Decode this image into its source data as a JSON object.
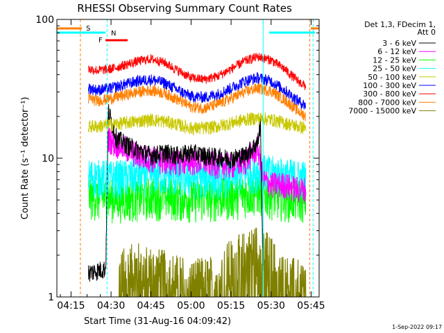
{
  "chart_data": {
    "type": "line",
    "title": "RHESSI Observing Summary Count Rates",
    "xlabel": "Start Time (31-Aug-16 04:09:42)",
    "ylabel": "Count Rate (s⁻¹ detector⁻¹)",
    "y_scale": "log",
    "xlim": [
      "04:09:42",
      "05:48:00"
    ],
    "ylim": [
      1,
      100
    ],
    "x_ticks": [
      "04:15",
      "04:30",
      "04:45",
      "05:00",
      "05:15",
      "05:30",
      "05:45"
    ],
    "y_ticks": [
      "1",
      "10",
      "100"
    ],
    "legend_title": [
      "Det 1,3, FDecim 1,",
      "Att 0"
    ],
    "legend_position": "right",
    "timestamp": "1-Sep-2022 09:17",
    "data_start": "04:21:30",
    "data_end": "05:43:00",
    "markers": [
      {
        "label": "S",
        "color": "#ff7f00",
        "lines": [
          "04:18:30",
          "05:44:30"
        ]
      },
      {
        "label": "N",
        "color": "#00ffff",
        "lines": [
          "04:28:30",
          "05:27:00",
          "05:45:45"
        ]
      },
      {
        "label": "F",
        "color": "#ff0000",
        "lines": []
      }
    ],
    "series": [
      {
        "name": "3 - 6 keV",
        "color": "#000000",
        "x": [
          "04:21:30",
          "04:28",
          "04:29",
          "04:32",
          "04:36",
          "04:40",
          "04:45",
          "04:50",
          "04:55",
          "05:00",
          "05:05",
          "05:10",
          "05:15",
          "05:20",
          "05:25",
          "05:26",
          "05:27"
        ],
        "y": [
          1.5,
          1.6,
          22,
          14,
          12.5,
          11.5,
          10.5,
          11,
          10.5,
          11,
          10.5,
          10.2,
          10,
          10.5,
          13,
          18,
          1.5
        ]
      },
      {
        "name": "6 - 12 keV",
        "color": "#ff00ff",
        "x": [
          "04:29",
          "04:31",
          "04:35",
          "04:40",
          "04:45",
          "04:50",
          "04:55",
          "05:00",
          "05:05",
          "05:10",
          "05:15",
          "05:20",
          "05:25",
          "05:27",
          "05:30",
          "05:35",
          "05:40",
          "05:43"
        ],
        "y": [
          14,
          13,
          12,
          10.5,
          10,
          9.5,
          9.5,
          9.5,
          9.5,
          9,
          9,
          9.5,
          12,
          7,
          6.5,
          6.5,
          6,
          6
        ]
      },
      {
        "name": "12 - 25 keV",
        "color": "#00ff00",
        "x": [
          "04:21:30",
          "04:25",
          "04:30",
          "04:35",
          "04:40",
          "04:45",
          "04:50",
          "04:55",
          "05:00",
          "05:05",
          "05:10",
          "05:15",
          "05:20",
          "05:25",
          "05:30",
          "05:35",
          "05:40",
          "05:43"
        ],
        "y": [
          5.5,
          5.3,
          5.2,
          5.2,
          5.3,
          5.4,
          5.4,
          5.3,
          5.2,
          5.2,
          5.3,
          5.4,
          5.6,
          5.8,
          5.5,
          5.3,
          5.2,
          5.2
        ]
      },
      {
        "name": "25 - 50 keV",
        "color": "#00ffff",
        "x": [
          "04:21:30",
          "04:25",
          "04:30",
          "04:35",
          "04:40",
          "04:45",
          "04:50",
          "04:55",
          "05:00",
          "05:05",
          "05:10",
          "05:15",
          "05:20",
          "05:25",
          "05:30",
          "05:35",
          "05:40",
          "05:43"
        ],
        "y": [
          7.5,
          7.4,
          7.3,
          7.4,
          7.6,
          7.8,
          7.7,
          7.5,
          7.3,
          7.3,
          7.4,
          7.6,
          7.9,
          8.2,
          7.9,
          7.6,
          7.4,
          7.3
        ]
      },
      {
        "name": "50 - 100 keV",
        "color": "#c8c800",
        "x": [
          "04:21:30",
          "04:25",
          "04:30",
          "04:35",
          "04:40",
          "04:45",
          "04:50",
          "04:55",
          "05:00",
          "05:05",
          "05:10",
          "05:15",
          "05:20",
          "05:25",
          "05:30",
          "05:35",
          "05:40",
          "05:43"
        ],
        "y": [
          17,
          17,
          17.5,
          18,
          18.5,
          19,
          18.5,
          17.5,
          16.5,
          16.5,
          17,
          18,
          19,
          19.5,
          19,
          18,
          17,
          16.5
        ]
      },
      {
        "name": "100 - 300 keV",
        "color": "#0000ff",
        "x": [
          "04:21:30",
          "04:25",
          "04:30",
          "04:35",
          "04:40",
          "04:45",
          "04:50",
          "04:55",
          "05:00",
          "05:05",
          "05:10",
          "05:15",
          "05:20",
          "05:25",
          "05:30",
          "05:35",
          "05:40",
          "05:43"
        ],
        "y": [
          32,
          31,
          32,
          34,
          36,
          37,
          35,
          31,
          28,
          27.5,
          29,
          32,
          36,
          38,
          36,
          31,
          26,
          24
        ]
      },
      {
        "name": "300 - 800 keV",
        "color": "#ff0000",
        "x": [
          "04:21:30",
          "04:25",
          "04:30",
          "04:35",
          "04:40",
          "04:45",
          "04:50",
          "04:55",
          "05:00",
          "05:05",
          "05:10",
          "05:15",
          "05:20",
          "05:25",
          "05:30",
          "05:35",
          "05:40",
          "05:43"
        ],
        "y": [
          44,
          43,
          44,
          47,
          50,
          52,
          49,
          43,
          38,
          37,
          39,
          44,
          50,
          54,
          51,
          44,
          36,
          33
        ]
      },
      {
        "name": "800 - 7000 keV",
        "color": "#ff7f00",
        "x": [
          "04:21:30",
          "04:25",
          "04:30",
          "04:35",
          "04:40",
          "04:45",
          "04:50",
          "04:55",
          "05:00",
          "05:05",
          "05:10",
          "05:15",
          "05:20",
          "05:25",
          "05:30",
          "05:35",
          "05:40",
          "05:43"
        ],
        "y": [
          27,
          26,
          27,
          28.5,
          30,
          31,
          29.5,
          26.5,
          23.5,
          23,
          24.5,
          27,
          30,
          32,
          30.5,
          26.5,
          22,
          20
        ]
      },
      {
        "name": "7000 - 15000 keV",
        "color": "#808000",
        "x": [
          "04:33",
          "04:36",
          "04:40",
          "04:45",
          "04:50",
          "04:55",
          "05:00",
          "05:10",
          "05:12",
          "05:15",
          "05:20",
          "05:25",
          "05:30",
          "05:32",
          "05:35",
          "05:40",
          "05:43"
        ],
        "y": [
          1.4,
          1.5,
          1.6,
          1.5,
          1.4,
          1.3,
          1.2,
          1.3,
          1.5,
          1.7,
          1.9,
          2.2,
          1.8,
          1.5,
          1.3,
          1.2,
          1.2
        ]
      }
    ]
  }
}
